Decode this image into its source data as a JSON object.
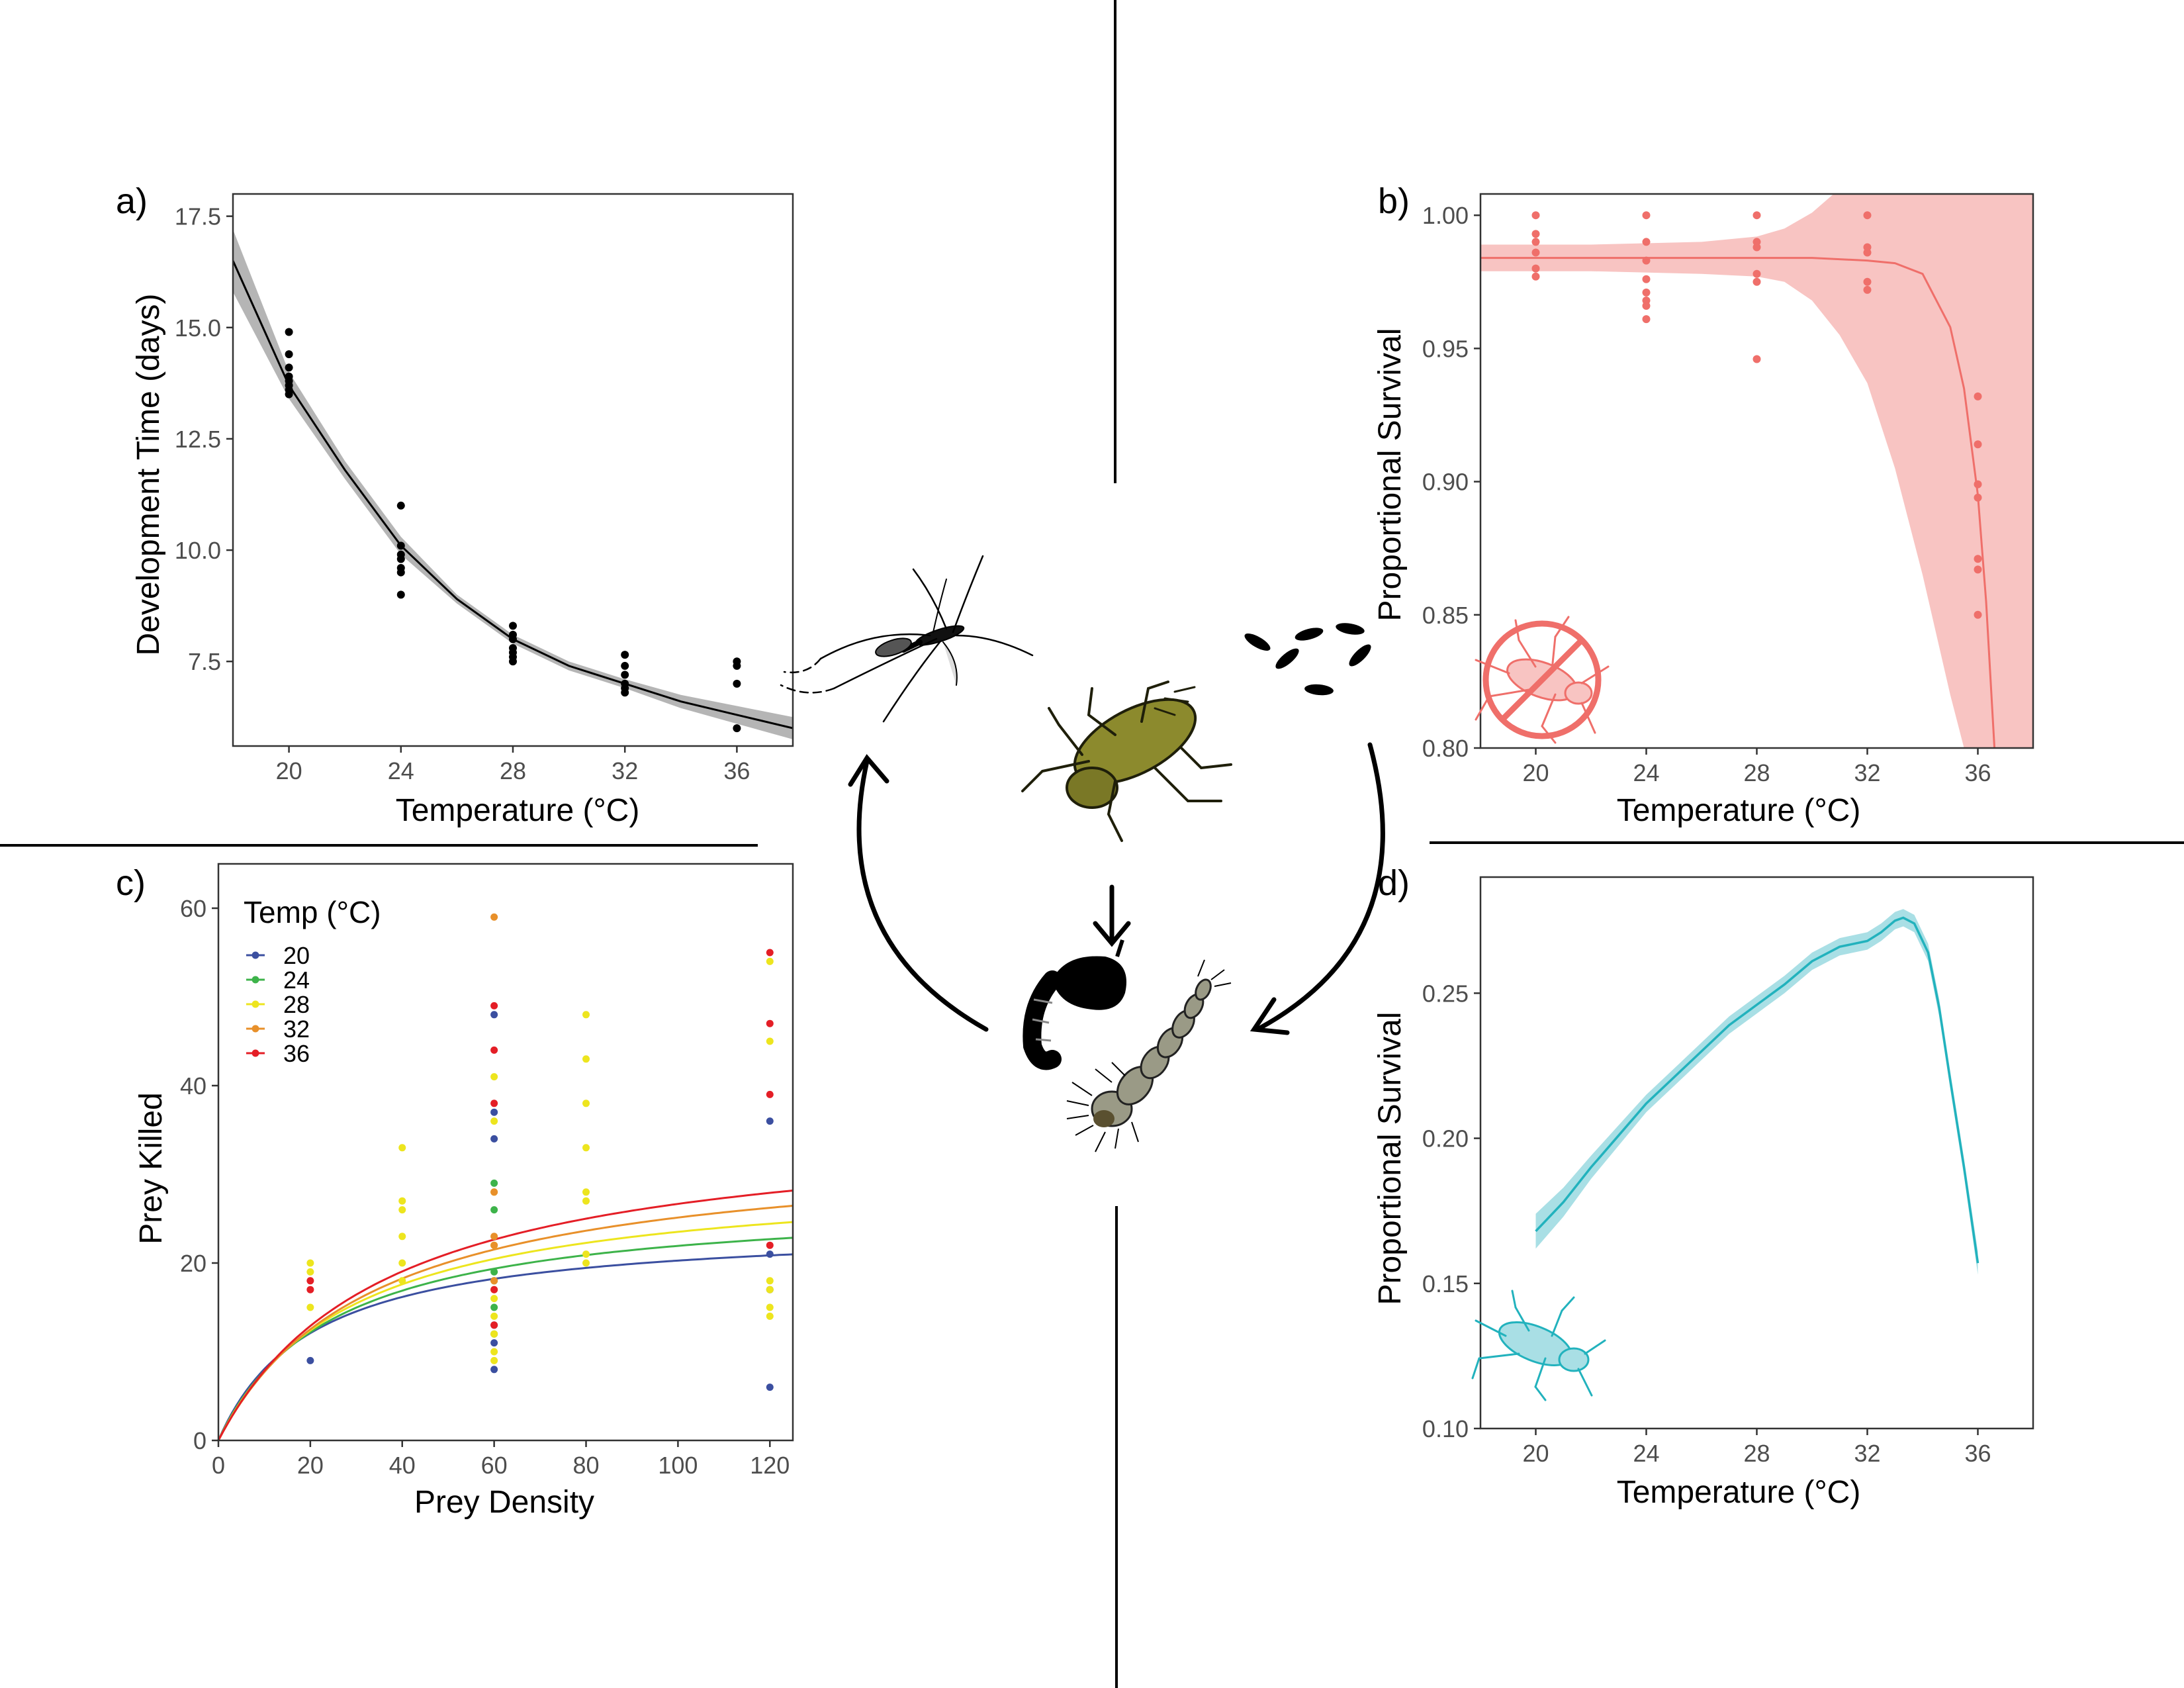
{
  "panels": {
    "a": {
      "letter": "a)",
      "xlabel": "Temperature (°C)",
      "ylabel": "Development Time (days)"
    },
    "b": {
      "letter": "b)",
      "xlabel": "Temperature (°C)",
      "ylabel": "Proportional Survival"
    },
    "c": {
      "letter": "c)",
      "xlabel": "Prey Density",
      "ylabel": "Prey Killed",
      "legend_title": "Temp (°C)"
    },
    "d": {
      "letter": "d)",
      "xlabel": "Temperature (°C)",
      "ylabel": "Proportional Survival"
    }
  },
  "icons": [
    "mosquito-icon",
    "eggs-icon",
    "predator-nymph-icon",
    "pupa-icon",
    "larva-icon",
    "no-predator-icon",
    "predator-outline-icon",
    "cycle-arrow-icon"
  ],
  "colors": {
    "axis": "#333333",
    "black": "#000000",
    "survival_red": "#ef6f6a",
    "survival_red_band": "#f8c4c2",
    "survival_cyan": "#22b2bd",
    "survival_cyan_band": "#a9dfe5",
    "ribbon_grey": "#b5b5b5",
    "insect_olive": "#8c8a2d",
    "larva_grey": "#9a9a86"
  },
  "chart_data": [
    {
      "id": "a",
      "type": "scatter",
      "xlabel": "Temperature (°C)",
      "ylabel": "Development Time (days)",
      "xlim": [
        18,
        38
      ],
      "ylim": [
        5.6,
        18
      ],
      "xticks": [
        20,
        24,
        28,
        32,
        36
      ],
      "yticks": [
        7.5,
        10.0,
        12.5,
        15.0,
        17.5
      ],
      "ytick_labels": [
        "7.5",
        "10.0",
        "12.5",
        "15.0",
        "17.5"
      ],
      "grid": false,
      "points": [
        [
          20,
          14.9
        ],
        [
          20,
          14.4
        ],
        [
          20,
          14.1
        ],
        [
          20,
          13.9
        ],
        [
          20,
          13.8
        ],
        [
          20,
          13.7
        ],
        [
          20,
          13.6
        ],
        [
          20,
          13.5
        ],
        [
          24,
          11.0
        ],
        [
          24,
          10.1
        ],
        [
          24,
          9.9
        ],
        [
          24,
          9.8
        ],
        [
          24,
          9.6
        ],
        [
          24,
          9.5
        ],
        [
          24,
          9.0
        ],
        [
          28,
          8.3
        ],
        [
          28,
          8.1
        ],
        [
          28,
          8.0
        ],
        [
          28,
          7.8
        ],
        [
          28,
          7.7
        ],
        [
          28,
          7.6
        ],
        [
          28,
          7.5
        ],
        [
          32,
          7.65
        ],
        [
          32,
          7.4
        ],
        [
          32,
          7.2
        ],
        [
          32,
          7.0
        ],
        [
          32,
          6.9
        ],
        [
          32,
          6.8
        ],
        [
          36,
          7.5
        ],
        [
          36,
          7.4
        ],
        [
          36,
          7.0
        ],
        [
          36,
          6.0
        ]
      ],
      "fit": {
        "x": [
          18,
          20,
          22,
          24,
          26,
          28,
          30,
          32,
          34,
          36,
          38
        ],
        "y": [
          16.5,
          13.7,
          11.8,
          10.1,
          8.9,
          8.0,
          7.4,
          7.0,
          6.6,
          6.3,
          6.0
        ],
        "lower": [
          15.8,
          13.4,
          11.6,
          9.9,
          8.8,
          7.9,
          7.3,
          6.9,
          6.45,
          6.1,
          5.75
        ],
        "upper": [
          17.2,
          14.0,
          12.0,
          10.3,
          9.0,
          8.1,
          7.5,
          7.1,
          6.75,
          6.5,
          6.25
        ]
      }
    },
    {
      "id": "b",
      "type": "scatter",
      "xlabel": "Temperature (°C)",
      "ylabel": "Proportional Survival",
      "xlim": [
        18,
        38
      ],
      "ylim": [
        0.8,
        1.008
      ],
      "xticks": [
        20,
        24,
        28,
        32,
        36
      ],
      "yticks": [
        0.8,
        0.85,
        0.9,
        0.95,
        1.0
      ],
      "ytick_labels": [
        "0.80",
        "0.85",
        "0.90",
        "0.95",
        "1.00"
      ],
      "grid": false,
      "points": [
        [
          20,
          1.0
        ],
        [
          20,
          0.993
        ],
        [
          20,
          0.99
        ],
        [
          20,
          0.986
        ],
        [
          20,
          0.98
        ],
        [
          20,
          0.977
        ],
        [
          24,
          1.0
        ],
        [
          24,
          0.99
        ],
        [
          24,
          0.983
        ],
        [
          24,
          0.976
        ],
        [
          24,
          0.971
        ],
        [
          24,
          0.968
        ],
        [
          24,
          0.966
        ],
        [
          24,
          0.961
        ],
        [
          28,
          1.0
        ],
        [
          28,
          0.99
        ],
        [
          28,
          0.988
        ],
        [
          28,
          0.978
        ],
        [
          28,
          0.975
        ],
        [
          28,
          0.946
        ],
        [
          32,
          1.0
        ],
        [
          32,
          0.988
        ],
        [
          32,
          0.986
        ],
        [
          32,
          0.975
        ],
        [
          32,
          0.972
        ],
        [
          36,
          0.932
        ],
        [
          36,
          0.914
        ],
        [
          36,
          0.899
        ],
        [
          36,
          0.894
        ],
        [
          36,
          0.871
        ],
        [
          36,
          0.867
        ],
        [
          36,
          0.85
        ]
      ],
      "fit": {
        "x": [
          18,
          22,
          26,
          30,
          32,
          33,
          34,
          35,
          35.5,
          36,
          36.3,
          36.6
        ],
        "y": [
          0.984,
          0.984,
          0.984,
          0.984,
          0.983,
          0.982,
          0.978,
          0.958,
          0.935,
          0.895,
          0.855,
          0.8
        ]
      },
      "band": {
        "x": [
          18,
          22,
          26,
          28,
          29,
          30,
          31,
          32,
          33,
          34,
          35,
          36,
          37,
          38
        ],
        "lower": [
          0.979,
          0.979,
          0.978,
          0.977,
          0.975,
          0.968,
          0.955,
          0.937,
          0.905,
          0.865,
          0.82,
          0.78,
          0.77,
          0.77
        ],
        "upper": [
          0.989,
          0.989,
          0.99,
          0.992,
          0.995,
          1.001,
          1.01,
          1.02,
          1.02,
          1.02,
          1.02,
          1.02,
          1.02,
          1.02
        ]
      }
    },
    {
      "id": "c",
      "type": "scatter",
      "xlabel": "Prey Density",
      "ylabel": "Prey Killed",
      "xlim": [
        0,
        125
      ],
      "ylim": [
        0,
        65
      ],
      "xticks": [
        0,
        20,
        40,
        60,
        80,
        100,
        120
      ],
      "yticks": [
        0,
        20,
        40,
        60
      ],
      "grid": false,
      "legend": {
        "title": "Temp (°C)",
        "position": "top-left"
      },
      "series": [
        {
          "name": "20",
          "color": "#3b4fa0",
          "a": 1.2,
          "h": 0.041,
          "points": [
            [
              20,
              9
            ],
            [
              60,
              48
            ],
            [
              60,
              37
            ],
            [
              60,
              34
            ],
            [
              60,
              13
            ],
            [
              60,
              11
            ],
            [
              60,
              8
            ],
            [
              120,
              36
            ],
            [
              120,
              21
            ],
            [
              120,
              17
            ],
            [
              120,
              6
            ]
          ]
        },
        {
          "name": "24",
          "color": "#3db34a",
          "a": 1.1,
          "h": 0.0365,
          "points": [
            [
              60,
              29
            ],
            [
              60,
              26
            ],
            [
              60,
              19
            ],
            [
              60,
              18
            ],
            [
              60,
              15
            ],
            [
              60,
              12
            ]
          ]
        },
        {
          "name": "28",
          "color": "#ede51e",
          "a": 1.05,
          "h": 0.033,
          "points": [
            [
              20,
              20
            ],
            [
              20,
              19
            ],
            [
              20,
              15
            ],
            [
              40,
              33
            ],
            [
              40,
              27
            ],
            [
              40,
              26
            ],
            [
              40,
              23
            ],
            [
              40,
              20
            ],
            [
              40,
              18
            ],
            [
              60,
              41
            ],
            [
              60,
              36
            ],
            [
              60,
              28
            ],
            [
              60,
              22
            ],
            [
              60,
              17
            ],
            [
              60,
              16
            ],
            [
              60,
              14
            ],
            [
              60,
              12
            ],
            [
              60,
              10
            ],
            [
              60,
              9
            ],
            [
              80,
              48
            ],
            [
              80,
              43
            ],
            [
              80,
              38
            ],
            [
              80,
              33
            ],
            [
              80,
              28
            ],
            [
              80,
              27
            ],
            [
              80,
              21
            ],
            [
              80,
              20
            ],
            [
              120,
              54
            ],
            [
              120,
              45
            ],
            [
              120,
              18
            ],
            [
              120,
              17
            ],
            [
              120,
              15
            ],
            [
              120,
              14
            ]
          ]
        },
        {
          "name": "32",
          "color": "#e8902a",
          "a": 1.0,
          "h": 0.0298,
          "points": [
            [
              60,
              59
            ],
            [
              60,
              28
            ],
            [
              60,
              23
            ],
            [
              60,
              22
            ],
            [
              60,
              18
            ]
          ]
        },
        {
          "name": "36",
          "color": "#e41e26",
          "a": 1.0,
          "h": 0.0275,
          "points": [
            [
              20,
              18
            ],
            [
              20,
              17
            ],
            [
              60,
              49
            ],
            [
              60,
              44
            ],
            [
              60,
              38
            ],
            [
              60,
              17
            ],
            [
              60,
              13
            ],
            [
              120,
              55
            ],
            [
              120,
              47
            ],
            [
              120,
              39
            ],
            [
              120,
              22
            ]
          ]
        }
      ]
    },
    {
      "id": "d",
      "type": "line",
      "xlabel": "Temperature (°C)",
      "ylabel": "Proportional Survival",
      "xlim": [
        18,
        38
      ],
      "ylim": [
        0.1,
        0.29
      ],
      "xticks": [
        20,
        24,
        28,
        32,
        36
      ],
      "yticks": [
        0.1,
        0.15,
        0.2,
        0.25
      ],
      "ytick_labels": [
        "0.10",
        "0.15",
        "0.20",
        "0.25"
      ],
      "grid": false,
      "line": {
        "x": [
          20,
          21,
          22,
          23,
          24,
          25,
          26,
          27,
          28,
          29,
          30,
          31,
          32,
          32.5,
          33,
          33.3,
          33.7,
          34.2,
          34.6,
          35,
          35.5,
          36
        ],
        "y": [
          0.168,
          0.178,
          0.19,
          0.201,
          0.212,
          0.221,
          0.23,
          0.239,
          0.246,
          0.253,
          0.261,
          0.266,
          0.268,
          0.271,
          0.275,
          0.276,
          0.274,
          0.264,
          0.245,
          0.22,
          0.19,
          0.157
        ],
        "half_width": [
          0.006,
          0.005,
          0.004,
          0.0035,
          0.003,
          0.003,
          0.003,
          0.003,
          0.003,
          0.003,
          0.003,
          0.003,
          0.003,
          0.003,
          0.003,
          0.003,
          0.003,
          0.003,
          0.003,
          0.003,
          0.003,
          0.004
        ]
      }
    }
  ]
}
